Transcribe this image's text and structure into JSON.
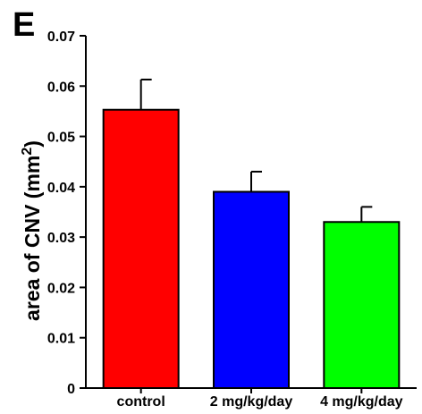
{
  "panel_label": "E",
  "chart_data": {
    "type": "bar",
    "categories": [
      "control",
      "2 mg/kg/day",
      "4 mg/kg/day"
    ],
    "values": [
      0.0553,
      0.039,
      0.033
    ],
    "errors": [
      0.006,
      0.004,
      0.003
    ],
    "colors": [
      "#ff0000",
      "#0000ff",
      "#00ff00"
    ],
    "ylabel": "area of CNV (mm",
    "ylabel_sup": "2",
    "ylabel_close": ")",
    "ylim": [
      0,
      0.07
    ],
    "yticks": [
      0,
      0.01,
      0.02,
      0.03,
      0.04,
      0.05,
      0.06,
      0.07
    ],
    "ytick_labels": [
      "0",
      "0.01",
      "0.02",
      "0.03",
      "0.04",
      "0.05",
      "0.06",
      "0.07"
    ],
    "grid": false,
    "legend": false
  }
}
